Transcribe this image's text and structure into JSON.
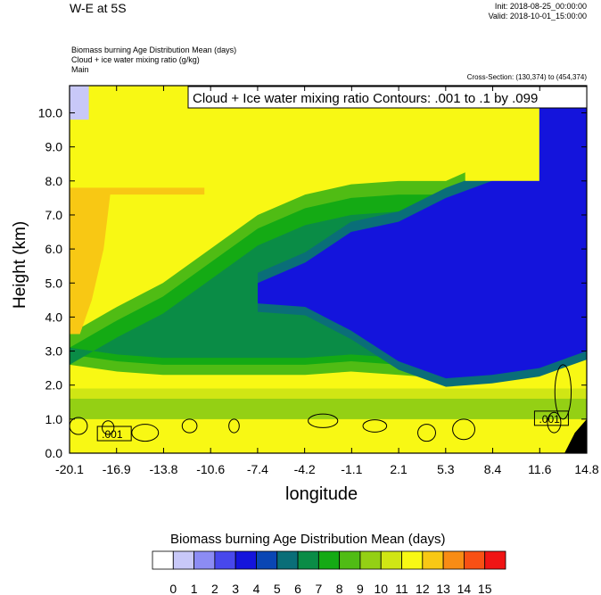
{
  "header": {
    "title": "W-E at 5S",
    "init": "Init: 2018-08-25_00:00:00",
    "valid": "Valid: 2018-10-01_15:00:00",
    "field1": "Biomass burning Age Distribution Mean   (days)",
    "field2": "Cloud + ice water mixing ratio   (g/kg)",
    "field3": "Main",
    "cross_section": "Cross-Section: (130,374) to (454,374)"
  },
  "chart_data": {
    "type": "heatmap",
    "overlay_label": "Cloud + Ice water mixing ratio Contours: .001 to .1 by .099",
    "xlabel": "longitude",
    "ylabel": "Height (km)",
    "xlim": [
      -20.1,
      14.8
    ],
    "ylim": [
      0,
      10.8
    ],
    "xticks": [
      "-20.1",
      "-16.9",
      "-13.8",
      "-10.6",
      "-7.4",
      "-4.2",
      "-1.1",
      "2.1",
      "5.3",
      "8.4",
      "11.6",
      "14.8"
    ],
    "yticks": [
      "0.0",
      "1.0",
      "2.0",
      "3.0",
      "4.0",
      "5.0",
      "6.0",
      "7.0",
      "8.0",
      "9.0",
      "10.0"
    ],
    "contour_labels": [
      ".001",
      ".001"
    ],
    "colorbar": {
      "title": "Biomass burning Age Distribution Mean  (days)",
      "levels": [
        "0",
        "1",
        "2",
        "3",
        "4",
        "5",
        "6",
        "7",
        "8",
        "9",
        "10",
        "11",
        "12",
        "13",
        "14",
        "15"
      ],
      "colors": [
        "#ffffff",
        "#c8c8f8",
        "#8c8cf4",
        "#4848ec",
        "#1414dc",
        "#0a46b4",
        "#0a6e78",
        "#0a8c46",
        "#14aa14",
        "#50bc14",
        "#94d014",
        "#d0e614",
        "#f8f814",
        "#f8c814",
        "#f88c14",
        "#f85014",
        "#f01414"
      ]
    },
    "bands": {
      "x": [
        -20.1,
        -16.9,
        -13.8,
        -10.6,
        -7.4,
        -4.2,
        -1.1,
        2.1,
        5.3,
        8.4,
        11.6,
        13.5,
        14.8
      ],
      "green_bottom": [
        2.6,
        2.4,
        2.3,
        2.3,
        2.3,
        2.3,
        2.4,
        2.3,
        2.2,
        2.2,
        2.3,
        2.8,
        3.0
      ],
      "blue_bottom": [
        null,
        null,
        null,
        null,
        4.4,
        4.3,
        3.6,
        2.7,
        2.2,
        2.3,
        2.5,
        2.8,
        3.0
      ],
      "blue_top": [
        null,
        null,
        null,
        null,
        5.0,
        5.6,
        6.5,
        6.8,
        7.5,
        8.0,
        10.8,
        10.8,
        10.8
      ],
      "green_top": [
        3.5,
        4.3,
        5.0,
        6.0,
        7.0,
        7.6,
        7.9,
        8.0,
        8.0,
        8.6,
        10.8,
        10.8,
        10.8
      ]
    }
  }
}
